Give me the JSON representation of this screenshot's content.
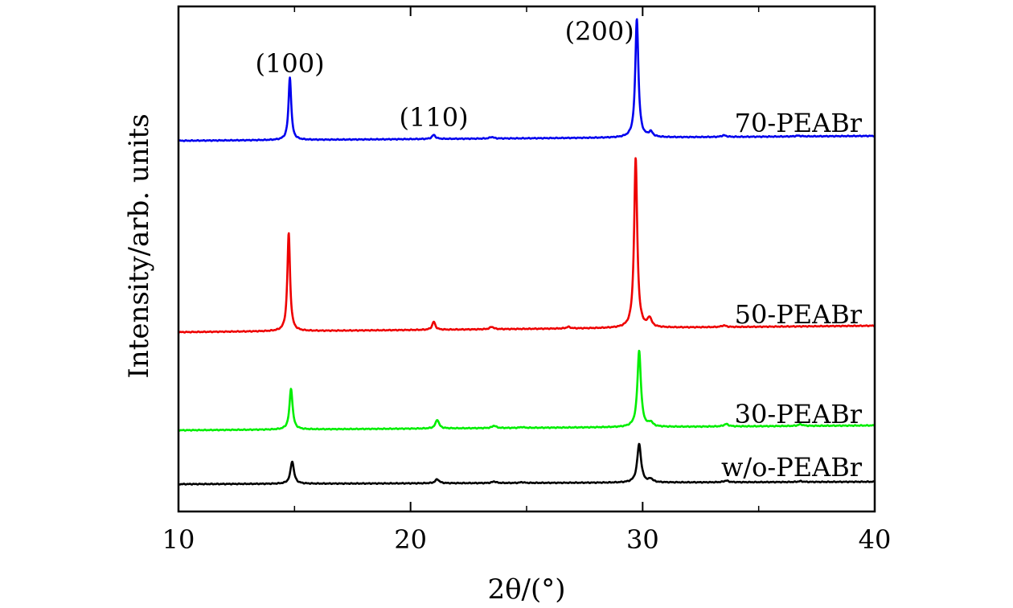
{
  "chart_data": {
    "type": "line",
    "xlabel": "2θ/(°)",
    "ylabel": "Intensity/arb. units",
    "xlim": [
      10,
      40
    ],
    "xticks": [
      10,
      20,
      30,
      40
    ],
    "y_ticks_shown": false,
    "grid": false,
    "legend": "series names printed at right end of each curve",
    "annotations": [
      {
        "text": "(100)",
        "x": 14.8
      },
      {
        "text": "(110)",
        "x": 21.0
      },
      {
        "text": "(200)",
        "x": 29.7
      }
    ],
    "series": [
      {
        "name": "w/o-PEABr",
        "color": "#000000",
        "offset": 0,
        "tilt": 3,
        "peaks": [
          [
            14.9,
            28,
            0.09
          ],
          [
            21.15,
            5,
            0.1
          ],
          [
            23.6,
            2,
            0.1
          ],
          [
            24.8,
            1,
            0.1
          ],
          [
            29.85,
            48,
            0.1
          ],
          [
            30.35,
            4,
            0.1
          ],
          [
            33.6,
            2,
            0.12
          ],
          [
            36.8,
            1,
            0.12
          ]
        ]
      },
      {
        "name": "30-PEABr",
        "color": "#00ee00",
        "offset": 67,
        "tilt": 6,
        "peaks": [
          [
            14.85,
            51,
            0.08
          ],
          [
            21.15,
            11,
            0.09
          ],
          [
            23.6,
            3,
            0.1
          ],
          [
            24.8,
            1,
            0.1
          ],
          [
            29.85,
            95,
            0.09
          ],
          [
            30.35,
            5,
            0.1
          ],
          [
            33.6,
            3,
            0.12
          ],
          [
            36.8,
            2,
            0.12
          ]
        ]
      },
      {
        "name": "50-PEABr",
        "color": "#ee0000",
        "offset": 189,
        "tilt": 8,
        "peaks": [
          [
            14.75,
            122,
            0.07
          ],
          [
            21.0,
            10,
            0.08
          ],
          [
            23.5,
            3,
            0.1
          ],
          [
            26.8,
            2,
            0.1
          ],
          [
            29.7,
            211,
            0.08
          ],
          [
            30.3,
            11,
            0.1
          ],
          [
            33.5,
            2,
            0.12
          ]
        ]
      },
      {
        "name": "70-PEABr",
        "color": "#0000ee",
        "offset": 427,
        "tilt": 6,
        "peaks": [
          [
            14.8,
            78,
            0.07
          ],
          [
            21.0,
            5,
            0.09
          ],
          [
            23.5,
            2,
            0.1
          ],
          [
            29.75,
            148,
            0.08
          ],
          [
            30.35,
            6,
            0.1
          ],
          [
            33.5,
            2,
            0.12
          ],
          [
            36.7,
            1,
            0.12
          ]
        ]
      }
    ]
  }
}
